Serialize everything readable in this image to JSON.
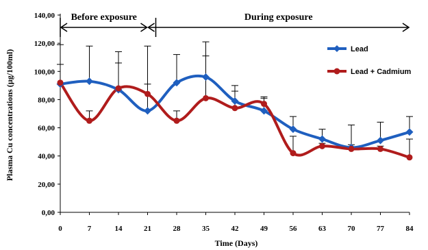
{
  "chart_data": {
    "type": "line",
    "xlabel": "Time (Days)",
    "ylabel": "Plasma Cu concentrations (µg/100ml)",
    "x": [
      0,
      7,
      14,
      21,
      28,
      35,
      42,
      49,
      56,
      63,
      70,
      77,
      84
    ],
    "x_tick_labels": [
      "0",
      "7",
      "14",
      "21",
      "28",
      "35",
      "42",
      "49",
      "56",
      "63",
      "70",
      "77",
      "84"
    ],
    "ylim": [
      0,
      140
    ],
    "y_tick_labels": [
      "0,00",
      "20,00",
      "40,00",
      "60,00",
      "80,00",
      "100,00",
      "120,00",
      "140,00"
    ],
    "grid": false,
    "legend_position": "top-right",
    "series": [
      {
        "name": "Lead",
        "color": "#1f5fbf",
        "marker": "diamond",
        "values": [
          91,
          93,
          87,
          72,
          92,
          96,
          79,
          72,
          59,
          52,
          46,
          51,
          57
        ],
        "error": [
          28,
          25,
          27,
          46,
          20,
          25,
          11,
          10,
          9,
          7,
          16,
          13,
          11
        ]
      },
      {
        "name": "Lead + Cadmium",
        "color": "#b01c1c",
        "marker": "circle",
        "values": [
          92,
          65,
          88,
          84,
          65,
          81,
          74,
          77,
          42,
          47,
          45,
          45,
          39
        ],
        "error": [
          13,
          7,
          18,
          7,
          7,
          30,
          12,
          4,
          12,
          2,
          3,
          2,
          13
        ]
      }
    ],
    "annotations": [
      {
        "text": "Before exposure",
        "from_x": 0,
        "to_x": 21
      },
      {
        "text": "During  exposure",
        "from_x": 21,
        "to_x": 84
      }
    ]
  }
}
